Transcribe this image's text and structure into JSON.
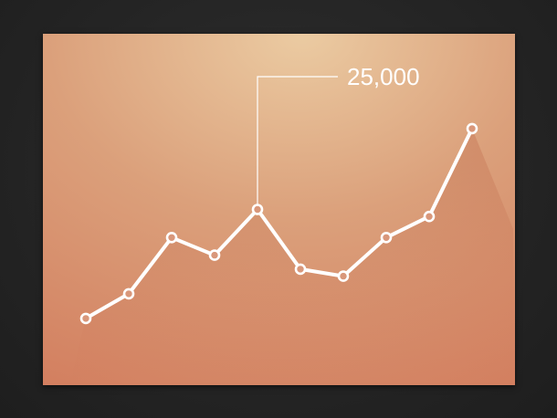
{
  "chart_data": {
    "type": "line",
    "x": [
      1,
      2,
      3,
      4,
      5,
      6,
      7,
      8,
      9,
      10
    ],
    "series": [
      {
        "values": [
          9500,
          13000,
          21000,
          18500,
          25000,
          16500,
          15500,
          21000,
          24000,
          36500
        ]
      }
    ],
    "ylim": [
      0,
      50000
    ],
    "xlim": [
      0,
      11
    ],
    "grid": false,
    "legend": "none",
    "annotations": [
      {
        "point_index": 4,
        "label": "25,000"
      }
    ]
  },
  "colors": {
    "background": "#242424",
    "card_light": "#eac9a0",
    "card_mid": "#d99b77",
    "card_dark": "#d37e5f",
    "line": "#ffffff"
  }
}
